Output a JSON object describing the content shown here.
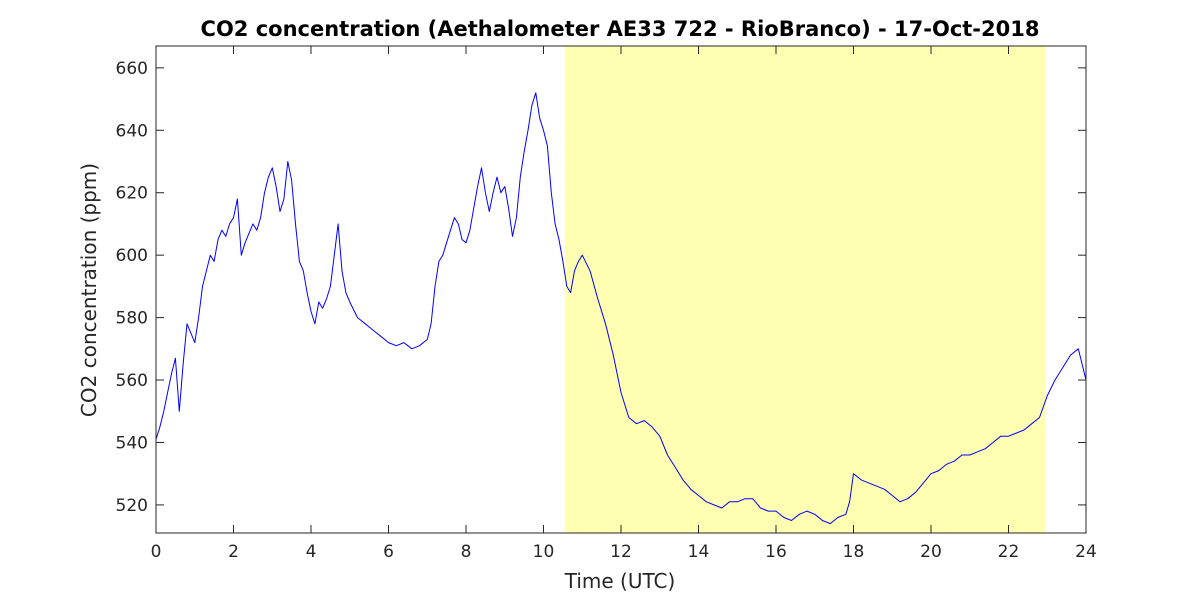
{
  "chart_data": {
    "type": "line",
    "title": "CO2 concentration (Aethalometer AE33 722 - RioBranco) - 17-Oct-2018",
    "xlabel": "Time (UTC)",
    "ylabel": "CO2 concentration (ppm)",
    "xlim": [
      0,
      24
    ],
    "ylim": [
      511,
      667
    ],
    "xticks": [
      0,
      2,
      4,
      6,
      8,
      10,
      12,
      14,
      16,
      18,
      20,
      22,
      24
    ],
    "yticks": [
      520,
      540,
      560,
      580,
      600,
      620,
      640,
      660
    ],
    "grid": false,
    "legend": "none",
    "line_color": "#0000ff",
    "shaded_region": {
      "x_start": 10.55,
      "x_end": 22.95,
      "color": "#ffffb2"
    },
    "series": [
      {
        "x": [
          0,
          0.1,
          0.2,
          0.3,
          0.4,
          0.5,
          0.6,
          0.7,
          0.8,
          0.9,
          1.0,
          1.1,
          1.2,
          1.3,
          1.4,
          1.5,
          1.6,
          1.7,
          1.8,
          1.9,
          2.0,
          2.1,
          2.2,
          2.3,
          2.4,
          2.5,
          2.6,
          2.7,
          2.8,
          2.9,
          3.0,
          3.1,
          3.2,
          3.3,
          3.4,
          3.5,
          3.6,
          3.7,
          3.8,
          3.9,
          4.0,
          4.1,
          4.2,
          4.3,
          4.4,
          4.5,
          4.6,
          4.7,
          4.8,
          4.9,
          5.0,
          5.2,
          5.4,
          5.6,
          5.8,
          6.0,
          6.2,
          6.4,
          6.6,
          6.8,
          7.0,
          7.1,
          7.2,
          7.3,
          7.4,
          7.5,
          7.6,
          7.7,
          7.8,
          7.9,
          8.0,
          8.1,
          8.2,
          8.3,
          8.4,
          8.5,
          8.6,
          8.7,
          8.8,
          8.9,
          9.0,
          9.1,
          9.2,
          9.3,
          9.4,
          9.5,
          9.6,
          9.7,
          9.8,
          9.9,
          10.0,
          10.1,
          10.2,
          10.3,
          10.4,
          10.5,
          10.6,
          10.7,
          10.8,
          10.9,
          11.0,
          11.2,
          11.4,
          11.6,
          11.8,
          12.0,
          12.2,
          12.4,
          12.6,
          12.8,
          13.0,
          13.2,
          13.4,
          13.6,
          13.8,
          14.0,
          14.2,
          14.4,
          14.6,
          14.8,
          15.0,
          15.2,
          15.4,
          15.6,
          15.8,
          16.0,
          16.2,
          16.4,
          16.6,
          16.8,
          17.0,
          17.2,
          17.4,
          17.6,
          17.8,
          17.9,
          18.0,
          18.2,
          18.4,
          18.6,
          18.8,
          19.0,
          19.2,
          19.4,
          19.6,
          19.8,
          20.0,
          20.2,
          20.4,
          20.6,
          20.8,
          21.0,
          21.2,
          21.4,
          21.6,
          21.8,
          22.0,
          22.2,
          22.4,
          22.6,
          22.8,
          23.0,
          23.2,
          23.4,
          23.6,
          23.8,
          24.0
        ],
        "y": [
          541,
          545,
          550,
          556,
          562,
          567,
          550,
          565,
          578,
          575,
          572,
          580,
          590,
          595,
          600,
          598,
          605,
          608,
          606,
          610,
          612,
          618,
          600,
          604,
          607,
          610,
          608,
          612,
          620,
          625,
          628,
          622,
          614,
          618,
          630,
          624,
          610,
          598,
          595,
          588,
          582,
          578,
          585,
          583,
          586,
          590,
          600,
          610,
          595,
          588,
          585,
          580,
          578,
          576,
          574,
          572,
          571,
          572,
          570,
          571,
          573,
          578,
          590,
          598,
          600,
          604,
          608,
          612,
          610,
          605,
          604,
          608,
          615,
          622,
          628,
          620,
          614,
          620,
          625,
          620,
          622,
          615,
          606,
          612,
          625,
          633,
          640,
          648,
          652,
          644,
          640,
          635,
          620,
          610,
          605,
          598,
          590,
          588,
          595,
          598,
          600,
          595,
          586,
          578,
          568,
          556,
          548,
          546,
          547,
          545,
          542,
          536,
          532,
          528,
          525,
          523,
          521,
          520,
          519,
          521,
          521,
          522,
          522,
          519,
          518,
          518,
          516,
          515,
          517,
          518,
          517,
          515,
          514,
          516,
          517,
          521,
          530,
          528,
          527,
          526,
          525,
          523,
          521,
          522,
          524,
          527,
          530,
          531,
          533,
          534,
          536,
          536,
          537,
          538,
          540,
          542,
          542,
          543,
          544,
          546,
          548,
          555,
          560,
          564,
          568,
          570,
          560
        ]
      }
    ]
  }
}
